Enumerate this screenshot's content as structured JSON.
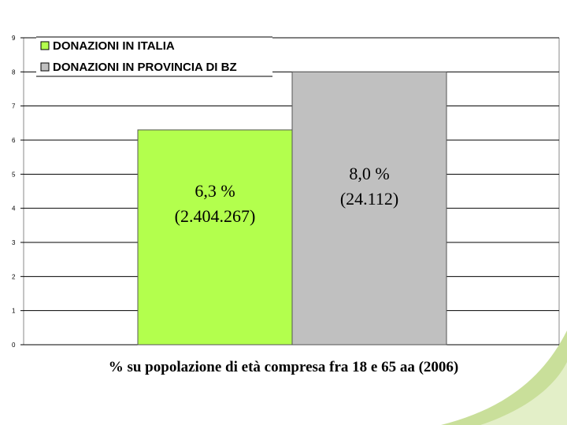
{
  "chart_data": {
    "type": "bar",
    "xlabel": "% su popolazione di età compresa fra 18 e 65 aa (2006)",
    "ylim": [
      0,
      9
    ],
    "yticks": [
      0,
      1,
      2,
      3,
      4,
      5,
      6,
      7,
      8,
      9
    ],
    "grid": true,
    "legend_placement": "top-left",
    "series": [
      {
        "name": "DONAZIONI IN ITALIA",
        "value": 6.3,
        "label_line1": "6,3 %",
        "label_line2": "(2.404.267)",
        "color": "#b3ff4d"
      },
      {
        "name": "DONAZIONI IN PROVINCIA DI BZ",
        "value": 8.0,
        "label_line1": "8,0 %",
        "label_line2": "(24.112)",
        "color": "#c0c0c0"
      }
    ],
    "accent_color": "#a8cc5a"
  }
}
